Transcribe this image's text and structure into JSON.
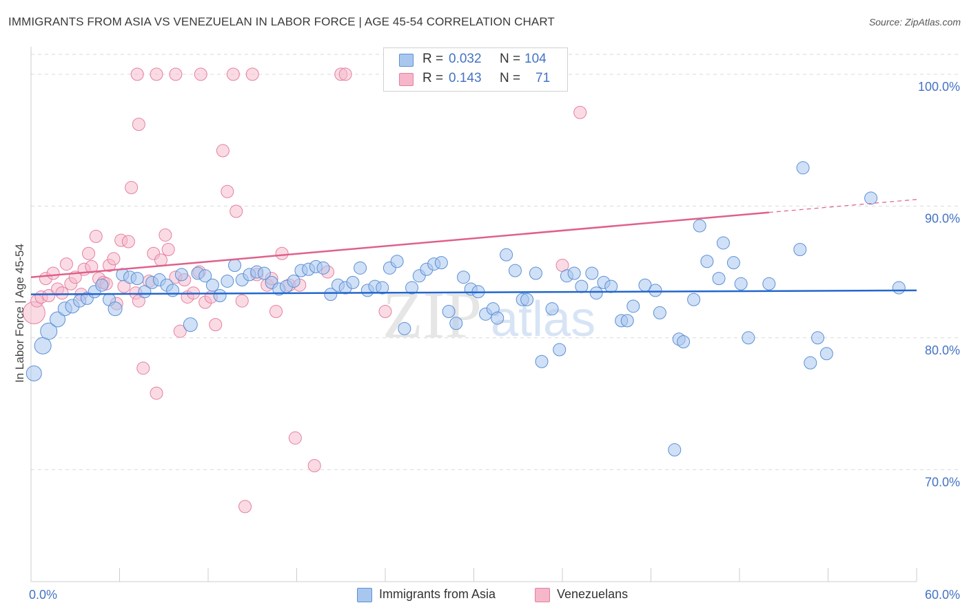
{
  "title": "IMMIGRANTS FROM ASIA VS VENEZUELAN IN LABOR FORCE | AGE 45-54 CORRELATION CHART",
  "source": "Source: ZipAtlas.com",
  "watermark": {
    "zip": "ZIP",
    "atlas": "atlas"
  },
  "legend": {
    "rows": [
      {
        "r_label": "R =",
        "r_value": "0.032",
        "n_label": "N =",
        "n_value": "104"
      },
      {
        "r_label": "R =",
        "r_value": "0.143",
        "n_label": "N =",
        "n_value": "71"
      }
    ]
  },
  "bottom_legend": {
    "series1": "Immigrants from Asia",
    "series2": "Venezuelans"
  },
  "colors": {
    "blue_fill": "#a9c7ee",
    "blue_stroke": "#5b8fd6",
    "blue_line": "#2266cc",
    "pink_fill": "#f5b7c9",
    "pink_stroke": "#e57fa0",
    "pink_line": "#e0608a",
    "tick": "#4472c4",
    "grid": "#d9d9d9"
  },
  "chart_data": {
    "type": "scatter",
    "title": "IMMIGRANTS FROM ASIA VS VENEZUELAN IN LABOR FORCE | AGE 45-54 CORRELATION CHART",
    "xlabel": "",
    "ylabel": "In Labor Force | Age 45-54",
    "xlim": [
      0,
      60
    ],
    "ylim": [
      61.5,
      102.5
    ],
    "x_tick_labels": [
      {
        "value": 0,
        "label": "0.0%"
      },
      {
        "value": 60,
        "label": "60.0%"
      }
    ],
    "y_tick_labels": [
      {
        "value": 100,
        "label": "100.0%"
      },
      {
        "value": 90,
        "label": "90.0%"
      },
      {
        "value": 80,
        "label": "80.0%"
      },
      {
        "value": 70,
        "label": "70.0%"
      }
    ],
    "grid": "horizontal dashed",
    "legend_position": "top-center",
    "series": [
      {
        "name": "Immigrants from Asia",
        "color": "#a9c7ee",
        "r": 0.032,
        "n": 104,
        "trend": {
          "x0": 0,
          "y0": 83.3,
          "x1": 60,
          "y1": 83.6,
          "dashed_from": null
        },
        "points": [
          [
            0.2,
            77.3,
            11
          ],
          [
            0.8,
            79.4,
            12
          ],
          [
            1.2,
            80.5,
            12
          ],
          [
            1.8,
            81.4,
            11
          ],
          [
            2.3,
            82.2,
            10
          ],
          [
            2.8,
            82.4,
            10
          ],
          [
            3.3,
            82.8,
            9
          ],
          [
            3.8,
            83.0,
            9
          ],
          [
            4.3,
            83.5,
            9
          ],
          [
            4.8,
            84.0,
            9
          ],
          [
            5.3,
            82.9,
            9
          ],
          [
            5.7,
            82.2,
            10
          ],
          [
            6.2,
            84.8,
            9
          ],
          [
            6.7,
            84.6,
            9
          ],
          [
            7.2,
            84.5,
            9
          ],
          [
            7.7,
            83.5,
            9
          ],
          [
            8.2,
            84.2,
            9
          ],
          [
            8.7,
            84.4,
            9
          ],
          [
            9.2,
            84.0,
            9
          ],
          [
            9.6,
            83.6,
            9
          ],
          [
            10.2,
            84.8,
            9
          ],
          [
            10.8,
            81.0,
            10
          ],
          [
            11.3,
            84.9,
            9
          ],
          [
            11.8,
            84.7,
            9
          ],
          [
            12.3,
            84.0,
            9
          ],
          [
            12.8,
            83.2,
            9
          ],
          [
            13.3,
            84.3,
            9
          ],
          [
            13.8,
            85.5,
            9
          ],
          [
            14.3,
            84.4,
            9
          ],
          [
            14.8,
            84.8,
            9
          ],
          [
            15.3,
            85.0,
            9
          ],
          [
            15.8,
            84.9,
            9
          ],
          [
            16.3,
            84.2,
            9
          ],
          [
            16.8,
            83.7,
            9
          ],
          [
            17.3,
            83.9,
            9
          ],
          [
            17.8,
            84.3,
            9
          ],
          [
            18.3,
            85.1,
            9
          ],
          [
            18.8,
            85.2,
            9
          ],
          [
            19.3,
            85.4,
            9
          ],
          [
            19.8,
            85.3,
            9
          ],
          [
            20.3,
            83.3,
            9
          ],
          [
            20.8,
            84.0,
            9
          ],
          [
            21.3,
            83.8,
            9
          ],
          [
            21.8,
            84.2,
            9
          ],
          [
            22.3,
            85.3,
            9
          ],
          [
            22.8,
            83.6,
            9
          ],
          [
            23.3,
            83.9,
            9
          ],
          [
            23.8,
            83.8,
            9
          ],
          [
            24.3,
            85.3,
            9
          ],
          [
            24.8,
            85.8,
            9
          ],
          [
            25.3,
            80.7,
            9
          ],
          [
            25.8,
            83.8,
            9
          ],
          [
            26.3,
            84.7,
            9
          ],
          [
            26.8,
            85.2,
            9
          ],
          [
            27.3,
            85.6,
            9
          ],
          [
            27.8,
            85.7,
            9
          ],
          [
            28.3,
            82.0,
            9
          ],
          [
            28.8,
            81.1,
            9
          ],
          [
            29.3,
            84.6,
            9
          ],
          [
            29.8,
            83.7,
            9
          ],
          [
            30.3,
            83.5,
            9
          ],
          [
            30.8,
            81.8,
            9
          ],
          [
            31.3,
            82.2,
            9
          ],
          [
            31.6,
            81.5,
            9
          ],
          [
            32.2,
            86.3,
            9
          ],
          [
            32.8,
            85.1,
            9
          ],
          [
            33.3,
            82.9,
            9
          ],
          [
            33.6,
            82.9,
            9
          ],
          [
            34.2,
            84.9,
            9
          ],
          [
            34.6,
            78.2,
            9
          ],
          [
            35.3,
            82.2,
            9
          ],
          [
            35.8,
            79.1,
            9
          ],
          [
            36.3,
            84.7,
            9
          ],
          [
            36.8,
            84.9,
            9
          ],
          [
            37.3,
            83.9,
            9
          ],
          [
            38.0,
            84.9,
            9
          ],
          [
            38.3,
            83.4,
            9
          ],
          [
            38.8,
            84.2,
            9
          ],
          [
            39.3,
            83.9,
            9
          ],
          [
            40.0,
            81.3,
            9
          ],
          [
            40.4,
            81.3,
            9
          ],
          [
            40.8,
            82.4,
            9
          ],
          [
            41.6,
            84.0,
            9
          ],
          [
            42.3,
            83.6,
            9
          ],
          [
            42.6,
            81.9,
            9
          ],
          [
            43.6,
            71.5,
            9
          ],
          [
            43.9,
            79.9,
            9
          ],
          [
            44.2,
            79.7,
            9
          ],
          [
            44.9,
            82.9,
            9
          ],
          [
            45.3,
            88.5,
            9
          ],
          [
            45.8,
            85.8,
            9
          ],
          [
            46.6,
            84.5,
            9
          ],
          [
            46.9,
            87.2,
            9
          ],
          [
            47.6,
            85.7,
            9
          ],
          [
            48.1,
            84.1,
            9
          ],
          [
            48.6,
            80.0,
            9
          ],
          [
            50.0,
            84.1,
            9
          ],
          [
            52.1,
            86.7,
            9
          ],
          [
            52.3,
            92.9,
            9
          ],
          [
            52.8,
            78.1,
            9
          ],
          [
            53.3,
            80.0,
            9
          ],
          [
            53.9,
            78.8,
            9
          ],
          [
            56.9,
            90.6,
            9
          ],
          [
            58.8,
            83.8,
            9
          ]
        ]
      },
      {
        "name": "Venezuelans",
        "color": "#f5b7c9",
        "r": 0.143,
        "n": 71,
        "trend": {
          "x0": 0,
          "y0": 84.6,
          "x1": 60,
          "y1": 90.5,
          "dashed_from": 50
        },
        "points": [
          [
            0.2,
            81.9,
            16
          ],
          [
            0.4,
            82.8,
            9
          ],
          [
            0.7,
            83.1,
            9
          ],
          [
            1.0,
            84.5,
            9
          ],
          [
            1.2,
            83.2,
            9
          ],
          [
            1.5,
            84.9,
            9
          ],
          [
            1.8,
            83.7,
            9
          ],
          [
            2.1,
            83.4,
            9
          ],
          [
            2.4,
            85.6,
            9
          ],
          [
            2.7,
            84.1,
            9
          ],
          [
            3.0,
            84.6,
            9
          ],
          [
            3.4,
            83.3,
            9
          ],
          [
            3.6,
            85.2,
            9
          ],
          [
            3.9,
            86.4,
            9
          ],
          [
            4.1,
            85.4,
            9
          ],
          [
            4.4,
            87.7,
            9
          ],
          [
            4.6,
            84.5,
            9
          ],
          [
            4.9,
            84.2,
            9
          ],
          [
            5.1,
            84.1,
            9
          ],
          [
            5.3,
            85.5,
            9
          ],
          [
            5.6,
            86.0,
            9
          ],
          [
            5.8,
            82.6,
            9
          ],
          [
            6.1,
            87.4,
            9
          ],
          [
            6.3,
            83.9,
            9
          ],
          [
            6.6,
            87.3,
            9
          ],
          [
            6.8,
            91.4,
            9
          ],
          [
            7.1,
            83.4,
            9
          ],
          [
            7.3,
            82.8,
            9
          ],
          [
            7.6,
            77.7,
            9
          ],
          [
            8.0,
            84.3,
            9
          ],
          [
            8.3,
            86.4,
            9
          ],
          [
            8.5,
            75.8,
            9
          ],
          [
            8.8,
            85.9,
            9
          ],
          [
            9.1,
            87.8,
            9
          ],
          [
            9.3,
            86.7,
            9
          ],
          [
            9.8,
            84.6,
            9
          ],
          [
            10.1,
            80.5,
            9
          ],
          [
            10.4,
            84.4,
            9
          ],
          [
            10.6,
            83.1,
            9
          ],
          [
            11.0,
            83.4,
            9
          ],
          [
            11.4,
            85.0,
            9
          ],
          [
            11.8,
            82.7,
            9
          ],
          [
            12.2,
            83.1,
            9
          ],
          [
            12.5,
            81.0,
            9
          ],
          [
            13.0,
            94.2,
            9
          ],
          [
            13.3,
            91.1,
            9
          ],
          [
            13.7,
            100.0,
            9
          ],
          [
            13.9,
            89.6,
            9
          ],
          [
            14.3,
            82.8,
            9
          ],
          [
            14.5,
            67.2,
            9
          ],
          [
            15.0,
            100.0,
            9
          ],
          [
            15.3,
            84.8,
            9
          ],
          [
            16.0,
            84.0,
            9
          ],
          [
            16.3,
            84.5,
            9
          ],
          [
            16.6,
            82.0,
            9
          ],
          [
            17.0,
            86.4,
            9
          ],
          [
            17.5,
            84.0,
            9
          ],
          [
            17.9,
            72.4,
            9
          ],
          [
            18.2,
            84.0,
            9
          ],
          [
            19.2,
            70.3,
            9
          ],
          [
            20.1,
            85.0,
            9
          ],
          [
            21.0,
            100.0,
            9
          ],
          [
            21.3,
            100.0,
            9
          ],
          [
            24.0,
            82.0,
            9
          ],
          [
            7.2,
            100.0,
            9
          ],
          [
            7.3,
            96.2,
            9
          ],
          [
            8.5,
            100.0,
            9
          ],
          [
            9.8,
            100.0,
            9
          ],
          [
            11.5,
            100.0,
            9
          ],
          [
            36.0,
            85.5,
            9
          ],
          [
            37.2,
            97.1,
            9
          ]
        ]
      }
    ]
  }
}
